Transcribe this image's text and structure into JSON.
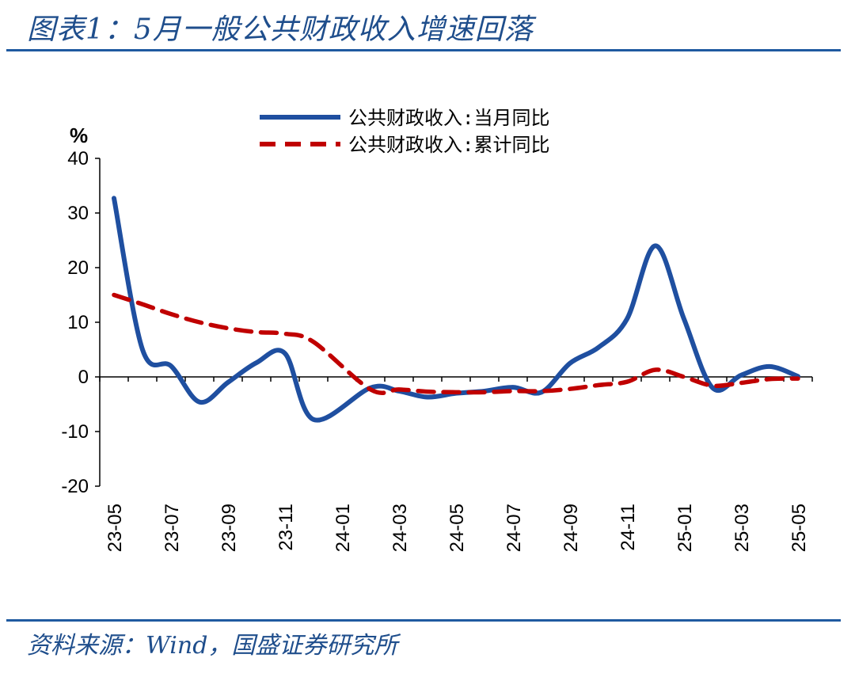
{
  "header": {
    "title": "图表1：5月一般公共财政收入增速回落"
  },
  "footer": {
    "source": "资料来源：Wind，国盛证券研究所"
  },
  "chart_data": {
    "type": "line",
    "y_unit": "%",
    "ylim": [
      -20,
      40
    ],
    "yticks": [
      40,
      30,
      20,
      10,
      0,
      -10,
      -20
    ],
    "x": [
      "23-05",
      "23-06",
      "23-07",
      "23-08",
      "23-09",
      "23-10",
      "23-11",
      "23-12",
      "24-01",
      "24-02",
      "24-03",
      "24-04",
      "24-05",
      "24-06",
      "24-07",
      "24-08",
      "24-09",
      "24-10",
      "24-11",
      "24-12",
      "25-01",
      "25-02",
      "25-03",
      "25-04",
      "25-05"
    ],
    "xtick_labels": [
      "23-05",
      "23-07",
      "23-09",
      "23-11",
      "24-01",
      "24-03",
      "24-05",
      "24-07",
      "24-09",
      "24-11",
      "25-01",
      "25-03",
      "25-05"
    ],
    "legend_position": "top",
    "series": [
      {
        "name": "公共财政收入:当月同比",
        "color": "#1f4fa0",
        "style": "solid",
        "values": [
          32.7,
          5.0,
          2.0,
          -4.6,
          -1.0,
          2.6,
          4.3,
          -7.8,
          null,
          -2.0,
          -2.6,
          -3.7,
          -3.0,
          -2.6,
          -1.9,
          -2.8,
          2.5,
          5.4,
          10.6,
          24.0,
          10.6,
          -2.0,
          0.3,
          1.9,
          0.1
        ]
      },
      {
        "name": "公共财政收入:累计同比",
        "color": "#c00000",
        "style": "dashed",
        "values": [
          15.0,
          13.3,
          11.5,
          10.0,
          8.9,
          8.2,
          7.9,
          6.4,
          null,
          -2.3,
          -2.3,
          -2.7,
          -2.8,
          -2.8,
          -2.6,
          -2.6,
          -2.2,
          -1.5,
          -0.9,
          1.3,
          0.0,
          -1.6,
          -1.1,
          -0.4,
          -0.3
        ]
      }
    ]
  }
}
